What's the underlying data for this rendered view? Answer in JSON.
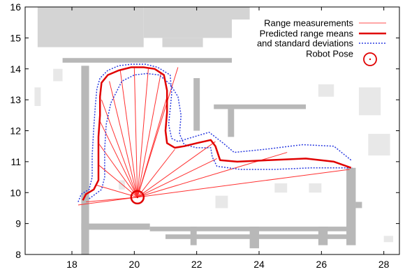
{
  "chart_data": {
    "type": "line",
    "title": "",
    "xlabel": "",
    "ylabel": "",
    "xlim": [
      16.5,
      28.5
    ],
    "ylim": [
      8,
      16
    ],
    "x_ticks": [
      "18",
      "20",
      "22",
      "24",
      "26",
      "28"
    ],
    "y_ticks": [
      "8",
      "9",
      "10",
      "11",
      "12",
      "13",
      "14",
      "15",
      "16"
    ],
    "grid": false,
    "legend_position": "top-right",
    "background": "occupancy grid map (gray obstacles on white)",
    "robot_pose": {
      "x": 20.1,
      "y": 9.85
    },
    "legend": [
      {
        "label": "Range measurements",
        "color": "#ff4d4d",
        "style": "thin-line"
      },
      {
        "label": "Predicted range means",
        "color": "#e00000",
        "style": "thick-line"
      },
      {
        "label": "and standard deviations",
        "color": "#2a3be0",
        "style": "dotted"
      },
      {
        "label": "Robot Pose",
        "color": "#e00000",
        "style": "circle"
      }
    ],
    "series": [
      {
        "name": "Range measurements",
        "beam_endpoints": [
          [
            18.45,
            9.7
          ],
          [
            18.75,
            10.25
          ],
          [
            18.85,
            10.9
          ],
          [
            18.85,
            11.6
          ],
          [
            18.9,
            12.3
          ],
          [
            18.95,
            13.0
          ],
          [
            19.2,
            13.6
          ],
          [
            19.55,
            13.95
          ],
          [
            20.0,
            14.05
          ],
          [
            20.45,
            14.0
          ],
          [
            20.85,
            13.85
          ],
          [
            21.05,
            13.1
          ],
          [
            21.4,
            14.05
          ],
          [
            21.3,
            11.4
          ],
          [
            22.6,
            11.65
          ],
          [
            22.65,
            11.1
          ],
          [
            24.9,
            11.3
          ],
          [
            26.9,
            10.75
          ],
          [
            18.2,
            9.6
          ]
        ]
      },
      {
        "name": "Predicted range means",
        "x": [
          18.35,
          18.45,
          18.7,
          18.85,
          18.85,
          18.85,
          18.9,
          18.9,
          18.95,
          19.15,
          19.5,
          19.9,
          20.3,
          20.65,
          20.95,
          21.05,
          21.05,
          21.0,
          21.05,
          21.3,
          21.6,
          22.0,
          22.45,
          22.6,
          22.75,
          23.3,
          24.3,
          25.5,
          26.4,
          26.95
        ],
        "y": [
          9.75,
          9.95,
          10.1,
          10.4,
          11.0,
          11.8,
          12.5,
          13.1,
          13.55,
          13.8,
          13.95,
          14.05,
          14.05,
          14.0,
          13.8,
          13.3,
          12.6,
          12.0,
          11.6,
          11.45,
          11.5,
          11.6,
          11.7,
          11.5,
          11.05,
          11.0,
          11.05,
          11.1,
          11.0,
          10.8
        ]
      },
      {
        "name": "standard deviations (upper)",
        "x": [
          18.2,
          18.3,
          18.55,
          18.65,
          18.65,
          18.7,
          18.75,
          18.8,
          18.9,
          19.15,
          19.5,
          19.9,
          20.35,
          20.75,
          21.15,
          21.2,
          21.1,
          21.2,
          21.4,
          21.9,
          22.4,
          22.85,
          23.2,
          24.2,
          25.4,
          26.4,
          26.95
        ],
        "y": [
          9.7,
          9.95,
          10.1,
          10.5,
          11.2,
          12.1,
          12.8,
          13.35,
          13.7,
          13.95,
          14.1,
          14.15,
          14.15,
          14.05,
          13.8,
          13.2,
          12.2,
          11.75,
          11.65,
          11.8,
          11.95,
          11.6,
          11.3,
          11.4,
          11.55,
          11.5,
          11.05
        ]
      },
      {
        "name": "standard deviations (lower)",
        "x": [
          18.55,
          18.95,
          19.05,
          19.05,
          19.1,
          19.25,
          19.6,
          20.0,
          20.4,
          20.8,
          21.15,
          21.4,
          21.5,
          21.45,
          21.6,
          22.0,
          22.45,
          22.5,
          22.65,
          23.4,
          24.5,
          25.7,
          26.7,
          27.0
        ],
        "y": [
          9.8,
          10.1,
          10.5,
          11.4,
          12.2,
          12.9,
          13.6,
          13.8,
          13.85,
          13.8,
          13.5,
          13.1,
          12.5,
          11.9,
          11.55,
          11.45,
          11.45,
          11.15,
          10.85,
          10.75,
          10.75,
          10.8,
          10.8,
          10.8
        ]
      }
    ]
  }
}
